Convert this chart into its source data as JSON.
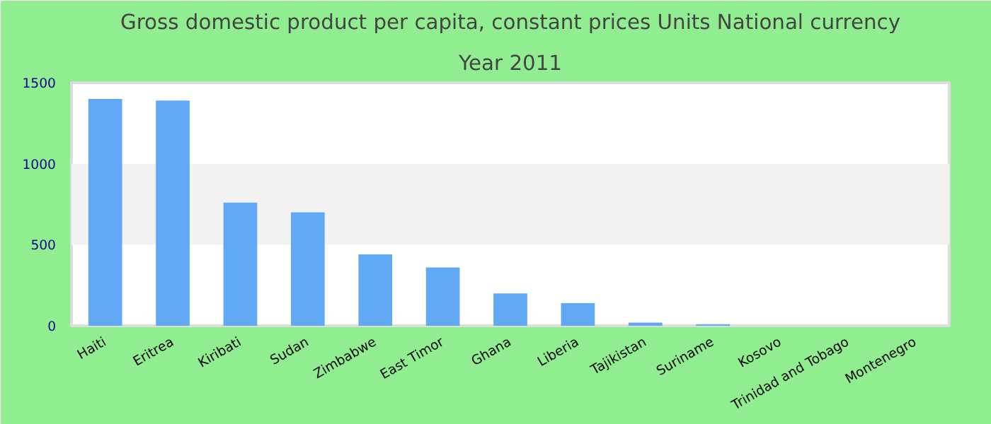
{
  "chart_data": {
    "type": "bar",
    "title": "Gross domestic product per capita, constant prices Units National currency",
    "subtitle": "Year 2011",
    "categories": [
      "Haiti",
      "Eritrea",
      "Kiribati",
      "Sudan",
      "Zimbabwe",
      "East Timor",
      "Ghana",
      "Liberia",
      "Tajikistan",
      "Suriname",
      "Kosovo",
      "Trinidad and Tobago",
      "Montenegro"
    ],
    "values": [
      1400,
      1390,
      760,
      700,
      440,
      360,
      200,
      140,
      20,
      10,
      0,
      0,
      0
    ],
    "color": "#61a8f5",
    "ylim": [
      0,
      1500
    ],
    "yticks": [
      0,
      500,
      1000,
      1500
    ],
    "bands": [
      {
        "axis": "y",
        "from": 500,
        "to": 1000,
        "color": "#f3f3f3"
      }
    ]
  }
}
